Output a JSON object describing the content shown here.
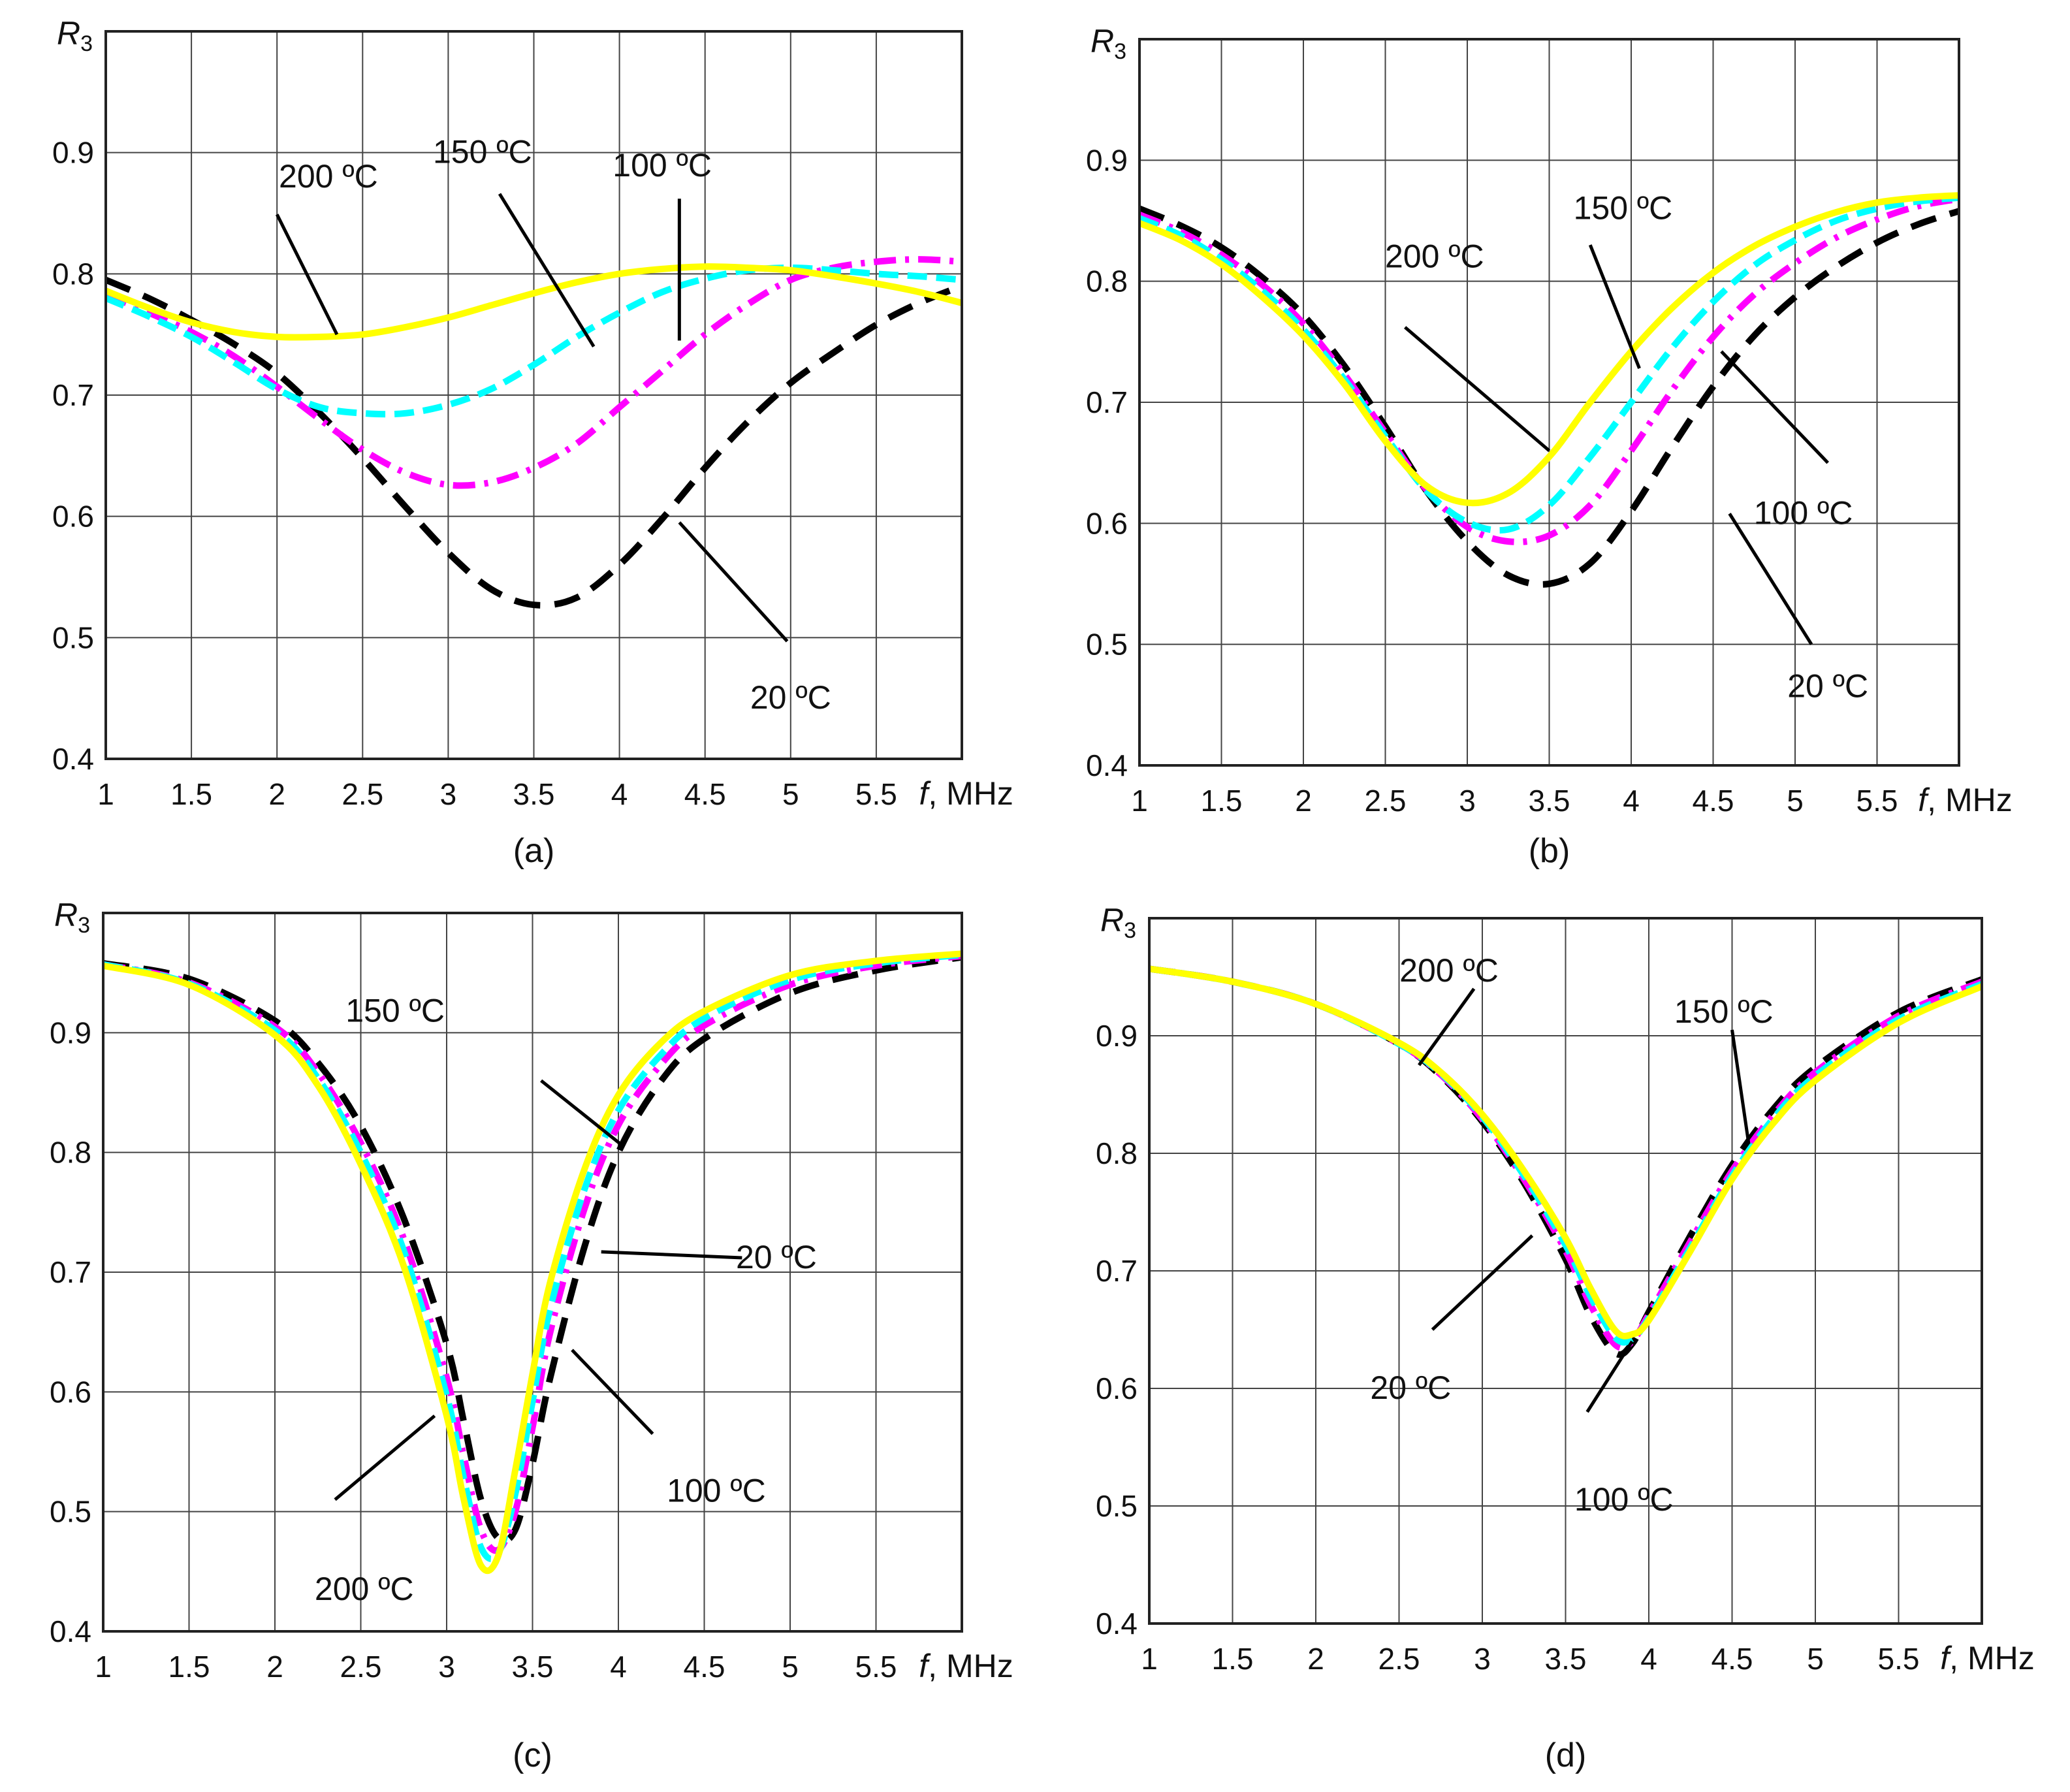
{
  "figure": {
    "series_styles": [
      {
        "name": "20 ºC",
        "color": "#000000",
        "dash": "40,22"
      },
      {
        "name": "100 ºC",
        "color": "#ff00ff",
        "dash": "34,14,6,14"
      },
      {
        "name": "150 ºC",
        "color": "#00ffff",
        "dash": "30,14"
      },
      {
        "name": "200 ºC",
        "color": "#ffff00",
        "dash": ""
      }
    ]
  },
  "chart_data": [
    {
      "type": "line",
      "panel_label": "(a)",
      "ylabel": "R",
      "ylabel_sub": "3",
      "xlabel_var": "f",
      "xlabel_unit": ", MHz",
      "xlim": [
        1,
        6
      ],
      "ylim": [
        0.4,
        1.0
      ],
      "x_ticks": [
        "1",
        "1.5",
        "2",
        "2.5",
        "3",
        "3.5",
        "4",
        "4.5",
        "5",
        "5.5"
      ],
      "y_ticks": [
        "0.4",
        "0.5",
        "0.6",
        "0.7",
        "0.8",
        "0.9"
      ],
      "x": [
        1,
        1.25,
        1.5,
        1.75,
        2,
        2.25,
        2.5,
        2.75,
        3,
        3.25,
        3.5,
        3.75,
        4,
        4.25,
        4.5,
        4.75,
        5,
        5.25,
        5.5,
        5.75,
        6
      ],
      "series": [
        {
          "name": "20 ºC",
          "values": [
            0.795,
            0.78,
            0.762,
            0.742,
            0.718,
            0.685,
            0.648,
            0.608,
            0.57,
            0.54,
            0.527,
            0.533,
            0.56,
            0.598,
            0.64,
            0.678,
            0.71,
            0.735,
            0.758,
            0.776,
            0.79
          ]
        },
        {
          "name": "100 ºC",
          "values": [
            0.783,
            0.768,
            0.752,
            0.732,
            0.707,
            0.68,
            0.655,
            0.636,
            0.626,
            0.628,
            0.64,
            0.66,
            0.69,
            0.72,
            0.75,
            0.775,
            0.795,
            0.805,
            0.81,
            0.812,
            0.81
          ]
        },
        {
          "name": "150 ºC",
          "values": [
            0.78,
            0.765,
            0.748,
            0.727,
            0.705,
            0.69,
            0.685,
            0.685,
            0.692,
            0.705,
            0.725,
            0.748,
            0.768,
            0.785,
            0.796,
            0.803,
            0.805,
            0.803,
            0.8,
            0.798,
            0.795
          ]
        },
        {
          "name": "200 ºC",
          "values": [
            0.786,
            0.772,
            0.76,
            0.752,
            0.748,
            0.748,
            0.75,
            0.756,
            0.764,
            0.774,
            0.784,
            0.793,
            0.8,
            0.804,
            0.806,
            0.805,
            0.803,
            0.798,
            0.792,
            0.785,
            0.776
          ]
        }
      ],
      "annotations": [
        {
          "label": "200 ºC",
          "x": 2.3,
          "y": 0.88,
          "x1": 2.0,
          "y1": 0.849,
          "x2": 2.35,
          "y2": 0.75
        },
        {
          "label": "150 ºC",
          "x": 3.2,
          "y": 0.9,
          "x1": 3.3,
          "y1": 0.866,
          "x2": 3.85,
          "y2": 0.74
        },
        {
          "label": "100 ºC",
          "x": 4.25,
          "y": 0.889,
          "x1": 4.35,
          "y1": 0.862,
          "x2": 4.35,
          "y2": 0.745
        },
        {
          "label": "20 ºC",
          "x": 5.0,
          "y": 0.45,
          "x1": 4.98,
          "y1": 0.497,
          "x2": 4.35,
          "y2": 0.595
        }
      ]
    },
    {
      "type": "line",
      "panel_label": "(b)",
      "ylabel": "R",
      "ylabel_sub": "3",
      "xlabel_var": "f",
      "xlabel_unit": ", MHz",
      "xlim": [
        1,
        6
      ],
      "ylim": [
        0.4,
        1.0
      ],
      "x_ticks": [
        "1",
        "1.5",
        "2",
        "2.5",
        "3",
        "3.5",
        "4",
        "4.5",
        "5",
        "5.5"
      ],
      "y_ticks": [
        "0.4",
        "0.5",
        "0.6",
        "0.7",
        "0.8",
        "0.9"
      ],
      "x": [
        1,
        1.25,
        1.5,
        1.75,
        2,
        2.25,
        2.5,
        2.75,
        3,
        3.25,
        3.5,
        3.75,
        4,
        4.25,
        4.5,
        4.75,
        5,
        5.25,
        5.5,
        5.75,
        6
      ],
      "series": [
        {
          "name": "20 ºC",
          "values": [
            0.86,
            0.846,
            0.828,
            0.803,
            0.772,
            0.73,
            0.68,
            0.627,
            0.585,
            0.557,
            0.55,
            0.567,
            0.61,
            0.663,
            0.713,
            0.755,
            0.787,
            0.812,
            0.832,
            0.847,
            0.858
          ]
        },
        {
          "name": "100 ºC",
          "values": [
            0.855,
            0.841,
            0.822,
            0.797,
            0.765,
            0.723,
            0.675,
            0.628,
            0.597,
            0.585,
            0.59,
            0.615,
            0.66,
            0.71,
            0.754,
            0.789,
            0.815,
            0.836,
            0.851,
            0.862,
            0.868
          ]
        },
        {
          "name": "150 ºC",
          "values": [
            0.852,
            0.838,
            0.818,
            0.792,
            0.76,
            0.719,
            0.672,
            0.627,
            0.601,
            0.595,
            0.615,
            0.655,
            0.7,
            0.745,
            0.783,
            0.813,
            0.834,
            0.85,
            0.86,
            0.866,
            0.869
          ]
        },
        {
          "name": "200 ºC",
          "values": [
            0.848,
            0.834,
            0.814,
            0.787,
            0.755,
            0.715,
            0.668,
            0.631,
            0.617,
            0.625,
            0.655,
            0.7,
            0.742,
            0.778,
            0.807,
            0.829,
            0.845,
            0.857,
            0.865,
            0.869,
            0.871
          ]
        }
      ],
      "annotations": [
        {
          "label": "200 ºC",
          "x": 2.8,
          "y": 0.82,
          "x1": 2.62,
          "y1": 0.762,
          "x2": 3.5,
          "y2": 0.66
        },
        {
          "label": "150 ºC",
          "x": 3.95,
          "y": 0.86,
          "x1": 3.75,
          "y1": 0.83,
          "x2": 4.05,
          "y2": 0.728
        },
        {
          "label": "100 ºC",
          "x": 5.05,
          "y": 0.608,
          "x1": 5.2,
          "y1": 0.65,
          "x2": 4.55,
          "y2": 0.742
        },
        {
          "label": "20 ºC",
          "x": 5.2,
          "y": 0.465,
          "x1": 5.1,
          "y1": 0.5,
          "x2": 4.6,
          "y2": 0.608
        }
      ]
    },
    {
      "type": "line",
      "panel_label": "(c)",
      "ylabel": "R",
      "ylabel_sub": "3",
      "xlabel_var": "f",
      "xlabel_unit": ", MHz",
      "xlim": [
        1,
        6
      ],
      "ylim": [
        0.4,
        1.0
      ],
      "x_ticks": [
        "1",
        "1.5",
        "2",
        "2.5",
        "3",
        "3.5",
        "4",
        "4.5",
        "5",
        "5.5"
      ],
      "y_ticks": [
        "0.4",
        "0.5",
        "0.6",
        "0.7",
        "0.8",
        "0.9"
      ],
      "x": [
        1,
        1.5,
        2,
        2.25,
        2.5,
        2.75,
        3,
        3.1,
        3.2,
        3.3,
        3.4,
        3.5,
        3.6,
        3.8,
        4,
        4.25,
        4.5,
        5,
        5.5,
        6
      ],
      "series": [
        {
          "name": "20 ºC",
          "values": [
            0.958,
            0.945,
            0.91,
            0.875,
            0.822,
            0.745,
            0.64,
            0.575,
            0.51,
            0.478,
            0.485,
            0.54,
            0.61,
            0.72,
            0.8,
            0.86,
            0.895,
            0.933,
            0.952,
            0.963
          ]
        },
        {
          "name": "100 ºC",
          "values": [
            0.957,
            0.942,
            0.905,
            0.867,
            0.808,
            0.728,
            0.612,
            0.546,
            0.485,
            0.468,
            0.5,
            0.57,
            0.648,
            0.752,
            0.823,
            0.874,
            0.906,
            0.94,
            0.956,
            0.964
          ]
        },
        {
          "name": "150 ºC",
          "values": [
            0.957,
            0.941,
            0.902,
            0.862,
            0.8,
            0.718,
            0.597,
            0.528,
            0.47,
            0.465,
            0.515,
            0.592,
            0.668,
            0.768,
            0.835,
            0.882,
            0.912,
            0.944,
            0.958,
            0.965
          ]
        },
        {
          "name": "200 ºC",
          "values": [
            0.956,
            0.94,
            0.898,
            0.856,
            0.79,
            0.705,
            0.58,
            0.51,
            0.455,
            0.463,
            0.535,
            0.615,
            0.69,
            0.785,
            0.848,
            0.892,
            0.918,
            0.948,
            0.96,
            0.966
          ]
        }
      ],
      "annotations": [
        {
          "label": "150 ºC",
          "x": 2.7,
          "y": 0.918,
          "x1": 3.55,
          "y1": 0.86,
          "x2": 4.03,
          "y2": 0.805
        },
        {
          "label": "20 ºC",
          "x": 4.92,
          "y": 0.712,
          "x1": 4.72,
          "y1": 0.712,
          "x2": 3.9,
          "y2": 0.717
        },
        {
          "label": "100 ºC",
          "x": 4.57,
          "y": 0.517,
          "x1": 4.2,
          "y1": 0.565,
          "x2": 3.73,
          "y2": 0.635
        },
        {
          "label": "200 ºC",
          "x": 2.52,
          "y": 0.435,
          "x1": 2.35,
          "y1": 0.51,
          "x2": 2.93,
          "y2": 0.58
        }
      ]
    },
    {
      "type": "line",
      "panel_label": "(d)",
      "ylabel": "R",
      "ylabel_sub": "3",
      "xlabel_var": "f",
      "xlabel_unit": ", MHz",
      "xlim": [
        1,
        6
      ],
      "ylim": [
        0.4,
        1.0
      ],
      "x_ticks": [
        "1",
        "1.5",
        "2",
        "2.5",
        "3",
        "3.5",
        "4",
        "4.5",
        "5",
        "5.5"
      ],
      "y_ticks": [
        "0.4",
        "0.5",
        "0.6",
        "0.7",
        "0.8",
        "0.9"
      ],
      "x": [
        1,
        1.5,
        2,
        2.5,
        2.75,
        3,
        3.25,
        3.5,
        3.65,
        3.8,
        3.9,
        4,
        4.25,
        4.5,
        4.75,
        5,
        5.5,
        6
      ],
      "series": [
        {
          "name": "20 ºC",
          "values": [
            0.957,
            0.946,
            0.927,
            0.893,
            0.866,
            0.827,
            0.775,
            0.71,
            0.662,
            0.63,
            0.638,
            0.665,
            0.73,
            0.79,
            0.838,
            0.873,
            0.92,
            0.948
          ]
        },
        {
          "name": "100 ºC",
          "values": [
            0.957,
            0.946,
            0.927,
            0.893,
            0.867,
            0.829,
            0.778,
            0.717,
            0.671,
            0.637,
            0.64,
            0.663,
            0.725,
            0.785,
            0.833,
            0.869,
            0.917,
            0.946
          ]
        },
        {
          "name": "150 ºC",
          "values": [
            0.957,
            0.946,
            0.927,
            0.893,
            0.868,
            0.831,
            0.781,
            0.722,
            0.678,
            0.643,
            0.642,
            0.66,
            0.72,
            0.781,
            0.83,
            0.866,
            0.914,
            0.944
          ]
        },
        {
          "name": "200 ºC",
          "values": [
            0.957,
            0.946,
            0.927,
            0.894,
            0.869,
            0.833,
            0.785,
            0.728,
            0.685,
            0.649,
            0.646,
            0.658,
            0.717,
            0.778,
            0.826,
            0.862,
            0.911,
            0.942
          ]
        }
      ],
      "annotations": [
        {
          "label": "200 ºC",
          "x": 2.8,
          "y": 0.955,
          "x1": 2.95,
          "y1": 0.94,
          "x2": 2.62,
          "y2": 0.875
        },
        {
          "label": "150 ºC",
          "x": 4.45,
          "y": 0.92,
          "x1": 4.5,
          "y1": 0.905,
          "x2": 4.6,
          "y2": 0.808
        },
        {
          "label": "20 ºC",
          "x": 2.57,
          "y": 0.6,
          "x1": 2.7,
          "y1": 0.65,
          "x2": 3.3,
          "y2": 0.73
        },
        {
          "label": "100 ºC",
          "x": 3.85,
          "y": 0.505,
          "x1": 3.63,
          "y1": 0.58,
          "x2": 3.9,
          "y2": 0.64
        }
      ]
    }
  ]
}
